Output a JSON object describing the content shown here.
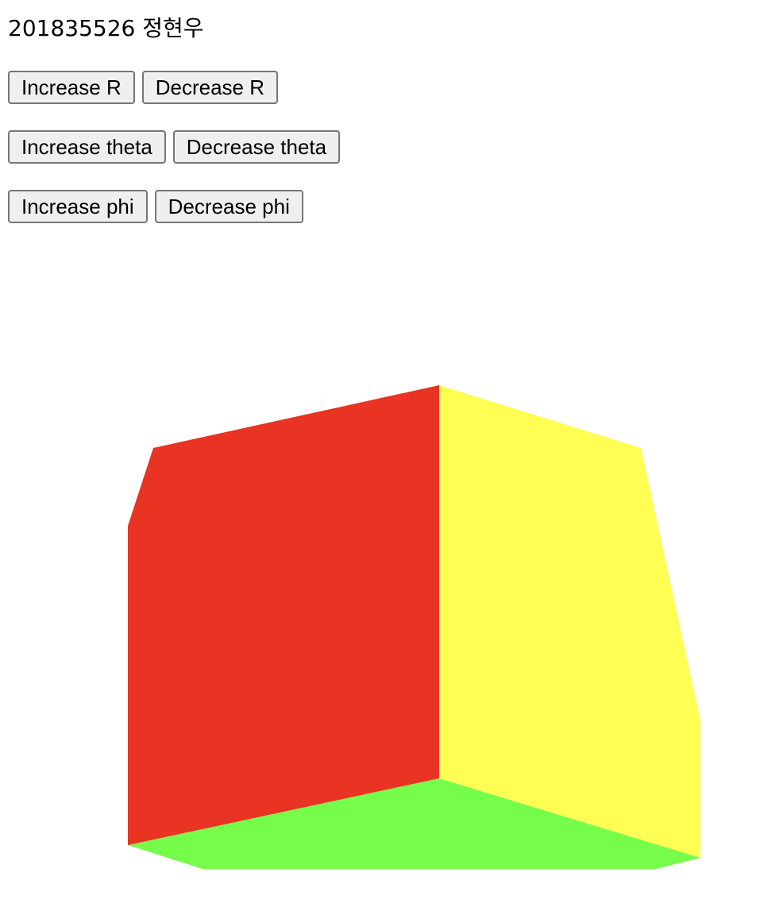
{
  "header": {
    "title": "201835526 정현우"
  },
  "controls": {
    "r": {
      "increase_label": "Increase R",
      "decrease_label": "Decrease R"
    },
    "theta": {
      "increase_label": "Increase theta",
      "decrease_label": "Decrease theta"
    },
    "phi": {
      "increase_label": "Increase phi",
      "decrease_label": "Decrease phi"
    }
  },
  "scene": {
    "background": "#ffffff",
    "faces": [
      {
        "name": "red-face",
        "color": "#e93323"
      },
      {
        "name": "yellow-face",
        "color": "#fffe53"
      },
      {
        "name": "green-face",
        "color": "#76fd4a"
      }
    ]
  }
}
